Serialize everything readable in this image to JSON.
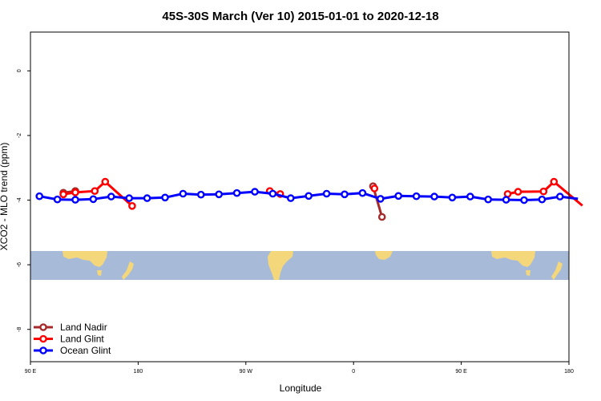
{
  "chart_data": {
    "type": "line",
    "title": "45S-30S March (Ver 10)   2015-01-01 to 2020-12-18",
    "xlabel": "Longitude",
    "ylabel": "XCO2 - MLO trend (ppm)",
    "xlim": [
      90,
      450
    ],
    "ylim": [
      -9,
      1.2
    ],
    "x_ticks": [
      {
        "value": 90,
        "label": "90 E"
      },
      {
        "value": 162,
        "label": "180"
      },
      {
        "value": 234,
        "label": "90 W"
      },
      {
        "value": 306,
        "label": "0"
      },
      {
        "value": 378,
        "label": "90 E"
      },
      {
        "value": 450,
        "label": "180"
      }
    ],
    "y_ticks": [
      {
        "value": 0,
        "label": "0"
      },
      {
        "value": -2,
        "label": "-2"
      },
      {
        "value": -4,
        "label": "-4"
      },
      {
        "value": -6,
        "label": "-6"
      },
      {
        "value": -8,
        "label": "-8"
      }
    ],
    "grid": false,
    "legend_position": "bottom-left",
    "series": [
      {
        "name": "Land Nadir",
        "color": "#a52a2a",
        "segments": [
          [
            [
              112,
              -3.77
            ],
            [
              120,
              -3.72
            ]
          ],
          [
            [
              319,
              -3.57
            ],
            [
              325,
              -4.52
            ]
          ]
        ]
      },
      {
        "name": "Land Glint",
        "color": "#ff0000",
        "segments": [
          [
            [
              112,
              -3.82
            ],
            [
              120,
              -3.76
            ],
            [
              133,
              -3.72
            ],
            [
              140,
              -3.43
            ],
            [
              158,
              -4.18
            ]
          ],
          [
            [
              250,
              -3.72
            ],
            [
              257,
              -3.81
            ]
          ],
          [
            [
              320,
              -3.64
            ]
          ],
          [
            [
              409,
              -3.81
            ],
            [
              416,
              -3.74
            ],
            [
              433,
              -3.73
            ],
            [
              440,
              -3.43
            ],
            [
              459,
              -4.17
            ]
          ]
        ]
      },
      {
        "name": "Ocean Glint",
        "color": "#0000ff",
        "segments": [
          [
            [
              96,
              -3.88
            ],
            [
              108,
              -3.98
            ],
            [
              120,
              -3.99
            ],
            [
              132,
              -3.97
            ],
            [
              144,
              -3.89
            ],
            [
              156,
              -3.94
            ],
            [
              168,
              -3.94
            ],
            [
              180,
              -3.92
            ],
            [
              192,
              -3.8
            ],
            [
              204,
              -3.83
            ],
            [
              216,
              -3.82
            ],
            [
              228,
              -3.78
            ],
            [
              240,
              -3.74
            ],
            [
              252,
              -3.8
            ],
            [
              264,
              -3.94
            ],
            [
              276,
              -3.87
            ],
            [
              288,
              -3.8
            ],
            [
              300,
              -3.82
            ],
            [
              312,
              -3.78
            ],
            [
              324,
              -3.96
            ],
            [
              336,
              -3.87
            ],
            [
              348,
              -3.88
            ],
            [
              360,
              -3.89
            ],
            [
              372,
              -3.92
            ],
            [
              384,
              -3.89
            ],
            [
              396,
              -3.98
            ],
            [
              408,
              -3.99
            ],
            [
              420,
              -4.0
            ],
            [
              432,
              -3.98
            ],
            [
              444,
              -3.89
            ],
            [
              456,
              -3.96
            ]
          ]
        ]
      }
    ],
    "map_strip": {
      "lat_range": "45S-30S",
      "ocean_color": "#a7bbd9",
      "land_color": "#f4d77b"
    }
  }
}
